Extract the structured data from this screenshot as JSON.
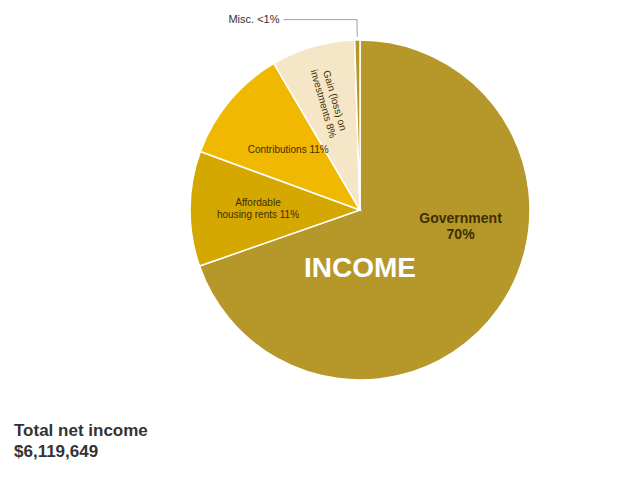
{
  "chart_data": {
    "type": "pie",
    "categories": [
      "Government\n70%",
      "Affordable\nhousing rents 11%",
      "Contributions 11%",
      "Gain (loss) on\ninvestments 8%",
      "Misc. <1%"
    ],
    "values": [
      70,
      11,
      11,
      8,
      0.5
    ],
    "colors": [
      "#b5972a",
      "#d4a800",
      "#f0b800",
      "#f5e6c8",
      "#b5972a"
    ],
    "annotations": [
      "INCOME",
      "Total net income\n$6,119,649"
    ]
  }
}
